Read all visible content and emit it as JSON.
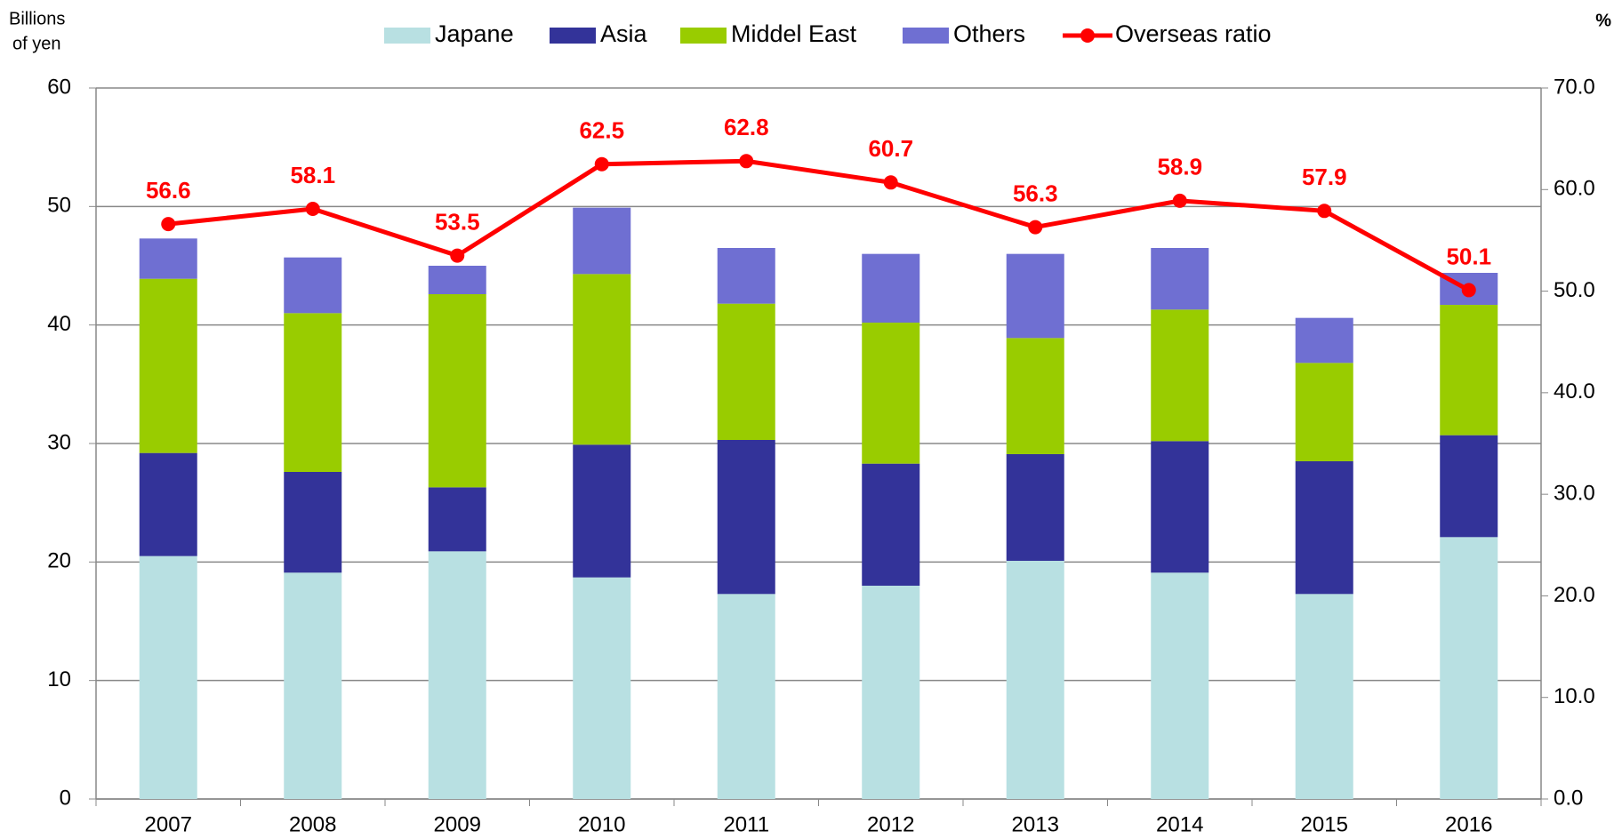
{
  "chart_data": {
    "type": "bar",
    "stacked": true,
    "ylabel": [
      "Billions",
      "of yen"
    ],
    "y2label": "%",
    "categories": [
      "2007",
      "2008",
      "2009",
      "2010",
      "2011",
      "2012",
      "2013",
      "2014",
      "2015",
      "2016"
    ],
    "series": [
      {
        "name": "Japane",
        "type": "bar",
        "color": "#b8e0e2",
        "values": [
          20.5,
          19.1,
          20.9,
          18.7,
          17.3,
          18.0,
          20.1,
          19.1,
          17.3,
          22.1
        ]
      },
      {
        "name": "Asia",
        "type": "bar",
        "color": "#333399",
        "values": [
          8.7,
          8.5,
          5.4,
          11.2,
          13.0,
          10.3,
          9.0,
          11.1,
          11.2,
          8.6
        ]
      },
      {
        "name": "Middel East",
        "type": "bar",
        "color": "#99cc00",
        "values": [
          14.7,
          13.4,
          16.3,
          14.4,
          11.5,
          11.9,
          9.8,
          11.1,
          8.3,
          11.0
        ]
      },
      {
        "name": "Others",
        "type": "bar",
        "color": "#6f6fd2",
        "values": [
          3.4,
          4.7,
          2.4,
          5.6,
          4.7,
          5.8,
          7.1,
          5.2,
          3.8,
          2.7
        ]
      },
      {
        "name": "Overseas ratio",
        "type": "line",
        "axis": "y2",
        "color": "#ff0000",
        "values": [
          56.6,
          58.1,
          53.5,
          62.5,
          62.8,
          60.7,
          56.3,
          58.9,
          57.9,
          50.1
        ]
      }
    ],
    "ylim": [
      0,
      60
    ],
    "yticks": [
      0,
      10,
      20,
      30,
      40,
      50,
      60
    ],
    "y2lim": [
      0,
      70
    ],
    "y2ticks": [
      {
        "value": 0,
        "label": "0.0"
      },
      {
        "value": 10,
        "label": "10.0"
      },
      {
        "value": 20,
        "label": "20.0"
      },
      {
        "value": 30,
        "label": "30.0"
      },
      {
        "value": 40,
        "label": "40.0"
      },
      {
        "value": 50,
        "label": "50.0"
      },
      {
        "value": 60,
        "label": "60.0"
      },
      {
        "value": 70,
        "label": "70.0"
      }
    ],
    "grid": true,
    "legend": "top"
  }
}
